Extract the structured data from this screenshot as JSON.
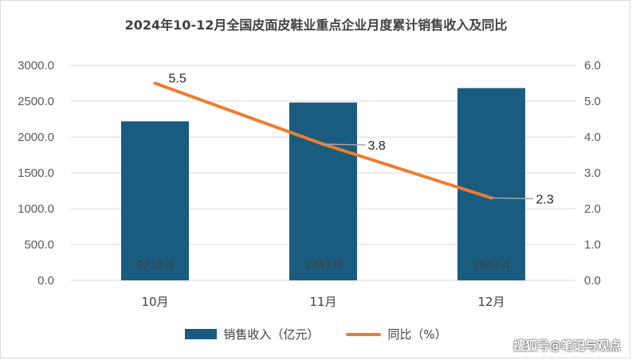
{
  "chart_data": {
    "type": "bar",
    "title": "2024年10-12月全国皮面皮鞋业重点企业月度累计销售收入及同比",
    "categories": [
      "10月",
      "11月",
      "12月"
    ],
    "series": [
      {
        "name": "销售收入（亿元）",
        "type": "bar",
        "axis": "left",
        "values": [
          2218.9,
          2481.0,
          2682.0
        ],
        "labels": [
          "2218.9",
          "2481.0",
          "2682.0"
        ]
      },
      {
        "name": "同比（%）",
        "type": "line",
        "axis": "right",
        "values": [
          5.5,
          3.8,
          2.3
        ],
        "labels": [
          "5.5",
          "3.8",
          "2.3"
        ]
      }
    ],
    "y_left": {
      "ylim": [
        0,
        3000
      ],
      "ticks": [
        "0.0",
        "500.0",
        "1000.0",
        "1500.0",
        "2000.0",
        "2500.0",
        "3000.0"
      ]
    },
    "y_right": {
      "ylim": [
        0,
        6
      ],
      "ticks": [
        "0.0",
        "1.0",
        "2.0",
        "3.0",
        "4.0",
        "5.0",
        "6.0"
      ]
    },
    "grid": true,
    "legend_position": "bottom"
  },
  "colors": {
    "bar": "#1a5c80",
    "line": "#ed7d31",
    "grid": "#d9d9d9",
    "leader": "#a6a6a6"
  },
  "watermark": "搜狐号@笔记与观点"
}
